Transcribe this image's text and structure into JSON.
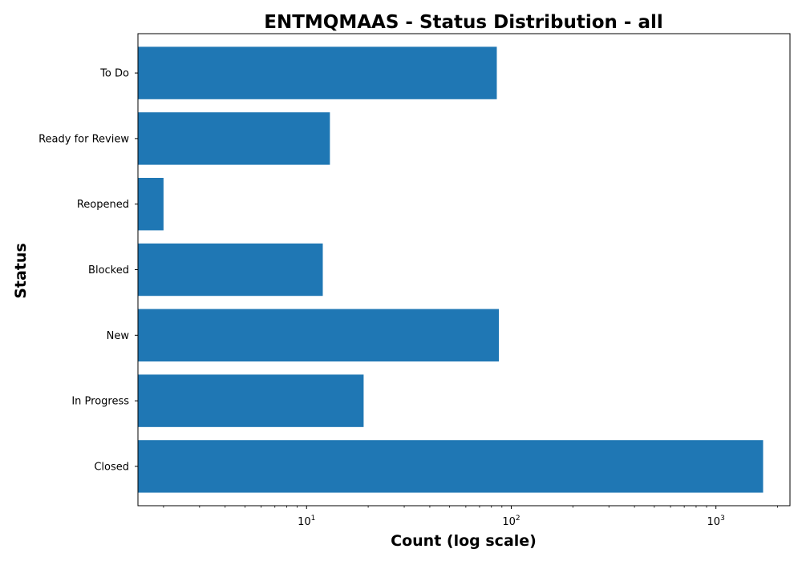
{
  "chart_data": {
    "type": "bar",
    "orientation": "horizontal",
    "title": "ENTMQMAAS - Status Distribution - all",
    "xlabel": "Count (log scale)",
    "ylabel": "Status",
    "xscale": "log",
    "xlim": [
      1.5,
      2300
    ],
    "xticks": [
      {
        "value": 10,
        "base": "10",
        "exponent": "1"
      },
      {
        "value": 100,
        "base": "10",
        "exponent": "2"
      },
      {
        "value": 1000,
        "base": "10",
        "exponent": "3"
      }
    ],
    "categories": [
      "To Do",
      "Ready for Review",
      "Reopened",
      "Blocked",
      "New",
      "In Progress",
      "Closed"
    ],
    "values": [
      85,
      13,
      2,
      12,
      87,
      19,
      1700
    ],
    "bar_color": "#1f77b4",
    "grid": false,
    "legend": "none"
  }
}
